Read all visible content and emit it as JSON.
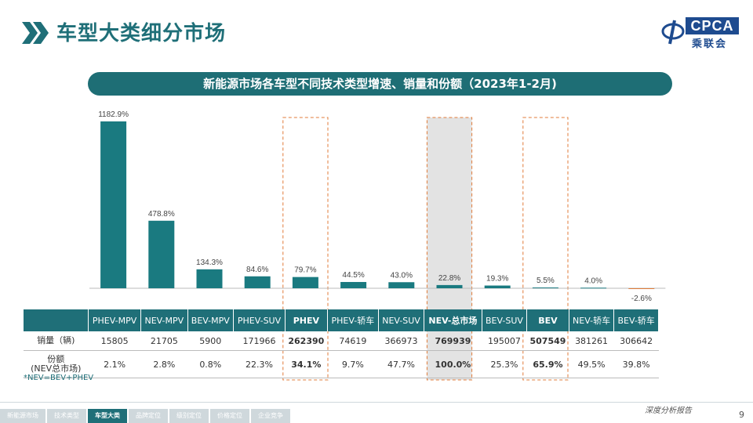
{
  "page": {
    "title": "车型大类细分市场",
    "logo_text_en": "CPCA",
    "logo_text_cn": "乘联会",
    "tagline": "深度分析报告",
    "page_number": "9",
    "note": "*NEV=BEV+PHEV"
  },
  "nav": {
    "items": [
      {
        "label": "新能源市场",
        "active": false
      },
      {
        "label": "技术类型",
        "active": false
      },
      {
        "label": "车型大类",
        "active": true
      },
      {
        "label": "品牌定位",
        "active": false
      },
      {
        "label": "级别定位",
        "active": false
      },
      {
        "label": "价格定位",
        "active": false
      },
      {
        "label": "企业竞争",
        "active": false
      }
    ]
  },
  "chart_data": {
    "type": "bar",
    "title": "新能源市场各车型不同技术类型增速、销量和份额（2023年1-2月)",
    "categories": [
      "PHEV-MPV",
      "NEV-MPV",
      "BEV-MPV",
      "PHEV-SUV",
      "PHEV",
      "PHEV-轿车",
      "NEV-SUV",
      "NEV-总市场",
      "BEV-SUV",
      "BEV",
      "NEV-轿车",
      "BEV-轿车"
    ],
    "values": [
      1182.9,
      478.8,
      134.3,
      84.6,
      79.7,
      44.5,
      43.0,
      22.8,
      19.3,
      5.5,
      4.0,
      -2.6
    ],
    "value_labels": [
      "1182.9%",
      "478.8%",
      "134.3%",
      "84.6%",
      "79.7%",
      "44.5%",
      "43.0%",
      "22.8%",
      "19.3%",
      "5.5%",
      "4.0%",
      "-2.6%"
    ],
    "bar_color": "#1a7a80",
    "highlight_dashed": [
      "PHEV",
      "BEV"
    ],
    "highlight_shaded": [
      "NEV-总市场"
    ],
    "ylim": [
      -20,
      1200
    ],
    "table": {
      "rows": [
        {
          "label": "销量（辆)",
          "values": [
            "15805",
            "21705",
            "5900",
            "171966",
            "262390",
            "74619",
            "366973",
            "769939",
            "195007",
            "507549",
            "381261",
            "306642"
          ]
        },
        {
          "label": "份额\n(NEV总市场)",
          "values": [
            "2.1%",
            "2.8%",
            "0.8%",
            "22.3%",
            "34.1%",
            "9.7%",
            "47.7%",
            "100.0%",
            "25.3%",
            "65.9%",
            "49.5%",
            "39.8%"
          ]
        }
      ],
      "bold_columns": [
        "PHEV",
        "NEV-总市场",
        "BEV"
      ]
    }
  }
}
